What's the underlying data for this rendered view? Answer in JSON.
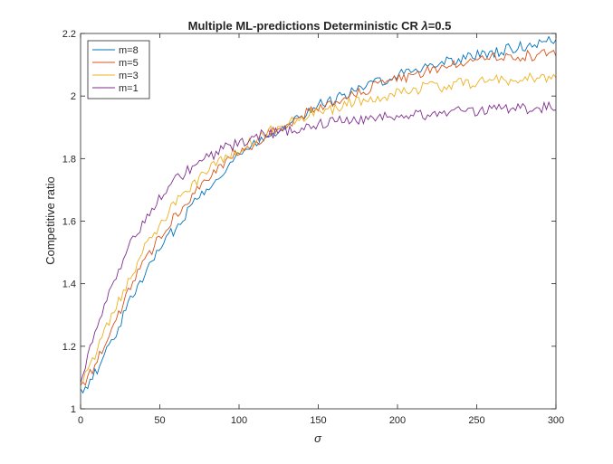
{
  "chart_data": {
    "type": "line",
    "title": "Multiple ML-predictions Deterministic CR  λ=0.5",
    "title_parts": {
      "main": "Multiple ML-predictions Deterministic CR  ",
      "lambda_symbol": "λ",
      "lambda_value": "=0.5"
    },
    "xlabel": "σ",
    "ylabel": "Competitive ratio",
    "xlim": [
      0,
      300
    ],
    "ylim": [
      1,
      2.2
    ],
    "x_ticks": [
      0,
      50,
      100,
      150,
      200,
      250,
      300
    ],
    "x_tick_labels": [
      "0",
      "50",
      "100",
      "150",
      "200",
      "250",
      "300"
    ],
    "y_ticks": [
      1,
      1.2,
      1.4,
      1.6,
      1.8,
      2,
      2.2
    ],
    "y_tick_labels": [
      "1",
      "1.2",
      "1.4",
      "1.6",
      "1.8",
      "2",
      "2.2"
    ],
    "grid": false,
    "legend_position": "top-left",
    "x": [
      0,
      10,
      20,
      30,
      40,
      50,
      60,
      70,
      80,
      90,
      100,
      110,
      120,
      130,
      140,
      150,
      160,
      170,
      180,
      190,
      200,
      210,
      220,
      230,
      240,
      250,
      260,
      270,
      280,
      290,
      300
    ],
    "series": [
      {
        "name": "m=8",
        "color": "#0072BD",
        "values": [
          1.05,
          1.12,
          1.22,
          1.33,
          1.43,
          1.51,
          1.58,
          1.65,
          1.71,
          1.76,
          1.81,
          1.85,
          1.88,
          1.91,
          1.94,
          1.97,
          1.99,
          2.01,
          2.03,
          2.05,
          2.07,
          2.08,
          2.1,
          2.11,
          2.12,
          2.13,
          2.14,
          2.15,
          2.16,
          2.17,
          2.18
        ]
      },
      {
        "name": "m=5",
        "color": "#D95319",
        "values": [
          1.06,
          1.15,
          1.26,
          1.37,
          1.47,
          1.55,
          1.62,
          1.68,
          1.73,
          1.78,
          1.82,
          1.85,
          1.88,
          1.91,
          1.94,
          1.96,
          1.98,
          2.0,
          2.02,
          2.04,
          2.05,
          2.07,
          2.08,
          2.09,
          2.1,
          2.11,
          2.12,
          2.12,
          2.13,
          2.13,
          2.14
        ]
      },
      {
        "name": "m=3",
        "color": "#EDB120",
        "values": [
          1.07,
          1.18,
          1.3,
          1.41,
          1.51,
          1.59,
          1.66,
          1.71,
          1.76,
          1.8,
          1.83,
          1.86,
          1.89,
          1.91,
          1.93,
          1.95,
          1.96,
          1.98,
          1.99,
          2.0,
          2.01,
          2.02,
          2.03,
          2.03,
          2.04,
          2.04,
          2.05,
          2.05,
          2.06,
          2.06,
          2.06
        ]
      },
      {
        "name": "m=1",
        "color": "#7E2F8E",
        "values": [
          1.1,
          1.25,
          1.39,
          1.51,
          1.6,
          1.67,
          1.73,
          1.77,
          1.8,
          1.83,
          1.85,
          1.87,
          1.88,
          1.89,
          1.9,
          1.91,
          1.92,
          1.92,
          1.93,
          1.93,
          1.94,
          1.94,
          1.94,
          1.95,
          1.95,
          1.95,
          1.96,
          1.96,
          1.96,
          1.96,
          1.97
        ]
      }
    ]
  }
}
